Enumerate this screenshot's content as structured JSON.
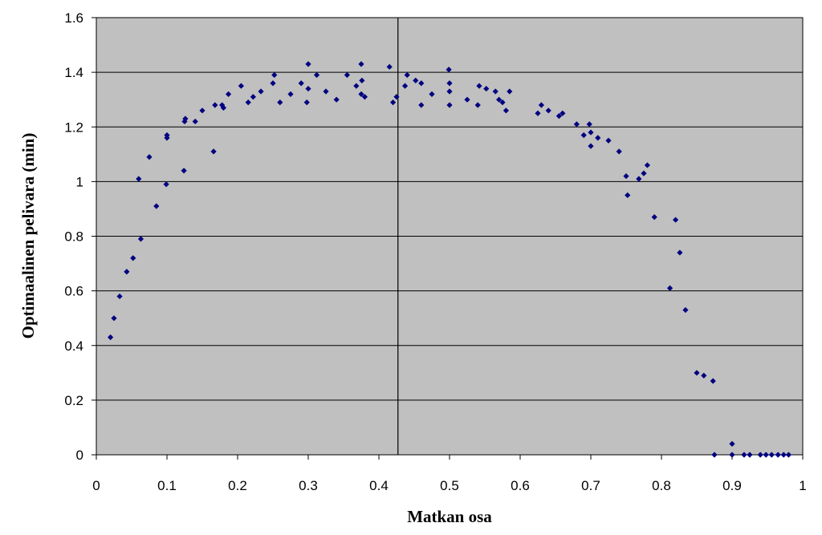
{
  "chart_data": {
    "type": "scatter",
    "title": "",
    "xlabel": "Matkan osa",
    "ylabel": "Optimaalinen pelivara (min)",
    "xlim": [
      0,
      1
    ],
    "ylim": [
      0,
      1.6
    ],
    "x_ticks": [
      "0",
      "0.1",
      "0.2",
      "0.3",
      "0.4",
      "0.5",
      "0.6",
      "0.7",
      "0.8",
      "0.9",
      "1"
    ],
    "y_ticks": [
      "0",
      "0.2",
      "0.4",
      "0.6",
      "0.8",
      "1",
      "1.2",
      "1.4",
      "1.6"
    ],
    "grid": "horizontal",
    "vertical_reference_line_x": 0.427,
    "plot_background": "#c0c0c0",
    "marker_color": "#000080",
    "series": [
      {
        "points": [
          [
            0.02,
            0.43
          ],
          [
            0.025,
            0.5
          ],
          [
            0.033,
            0.58
          ],
          [
            0.043,
            0.67
          ],
          [
            0.052,
            0.72
          ],
          [
            0.06,
            1.01
          ],
          [
            0.063,
            0.79
          ],
          [
            0.075,
            1.09
          ],
          [
            0.085,
            0.91
          ],
          [
            0.099,
            0.99
          ],
          [
            0.1,
            1.16
          ],
          [
            0.1,
            1.17
          ],
          [
            0.124,
            1.04
          ],
          [
            0.125,
            1.22
          ],
          [
            0.126,
            1.23
          ],
          [
            0.14,
            1.22
          ],
          [
            0.15,
            1.26
          ],
          [
            0.166,
            1.11
          ],
          [
            0.168,
            1.28
          ],
          [
            0.178,
            1.28
          ],
          [
            0.18,
            1.27
          ],
          [
            0.187,
            1.32
          ],
          [
            0.205,
            1.35
          ],
          [
            0.215,
            1.29
          ],
          [
            0.222,
            1.31
          ],
          [
            0.233,
            1.33
          ],
          [
            0.25,
            1.36
          ],
          [
            0.252,
            1.39
          ],
          [
            0.26,
            1.29
          ],
          [
            0.275,
            1.32
          ],
          [
            0.29,
            1.36
          ],
          [
            0.298,
            1.29
          ],
          [
            0.3,
            1.34
          ],
          [
            0.3,
            1.43
          ],
          [
            0.312,
            1.39
          ],
          [
            0.325,
            1.33
          ],
          [
            0.34,
            1.3
          ],
          [
            0.355,
            1.39
          ],
          [
            0.368,
            1.35
          ],
          [
            0.375,
            1.43
          ],
          [
            0.375,
            1.32
          ],
          [
            0.376,
            1.37
          ],
          [
            0.38,
            1.31
          ],
          [
            0.415,
            1.42
          ],
          [
            0.42,
            1.29
          ],
          [
            0.425,
            1.31
          ],
          [
            0.437,
            1.35
          ],
          [
            0.44,
            1.39
          ],
          [
            0.452,
            1.37
          ],
          [
            0.46,
            1.36
          ],
          [
            0.46,
            1.28
          ],
          [
            0.475,
            1.32
          ],
          [
            0.499,
            1.41
          ],
          [
            0.5,
            1.36
          ],
          [
            0.5,
            1.33
          ],
          [
            0.5,
            1.28
          ],
          [
            0.525,
            1.3
          ],
          [
            0.54,
            1.28
          ],
          [
            0.542,
            1.35
          ],
          [
            0.552,
            1.34
          ],
          [
            0.565,
            1.33
          ],
          [
            0.57,
            1.3
          ],
          [
            0.575,
            1.29
          ],
          [
            0.58,
            1.26
          ],
          [
            0.585,
            1.33
          ],
          [
            0.625,
            1.25
          ],
          [
            0.63,
            1.28
          ],
          [
            0.64,
            1.26
          ],
          [
            0.655,
            1.24
          ],
          [
            0.66,
            1.25
          ],
          [
            0.68,
            1.21
          ],
          [
            0.69,
            1.17
          ],
          [
            0.698,
            1.21
          ],
          [
            0.7,
            1.13
          ],
          [
            0.7,
            1.18
          ],
          [
            0.71,
            1.16
          ],
          [
            0.725,
            1.15
          ],
          [
            0.74,
            1.11
          ],
          [
            0.75,
            1.02
          ],
          [
            0.752,
            0.95
          ],
          [
            0.768,
            1.01
          ],
          [
            0.775,
            1.03
          ],
          [
            0.78,
            1.06
          ],
          [
            0.79,
            0.87
          ],
          [
            0.812,
            0.61
          ],
          [
            0.82,
            0.86
          ],
          [
            0.826,
            0.74
          ],
          [
            0.834,
            0.53
          ],
          [
            0.85,
            0.3
          ],
          [
            0.86,
            0.29
          ],
          [
            0.873,
            0.27
          ],
          [
            0.875,
            0.0
          ],
          [
            0.9,
            0.04
          ],
          [
            0.9,
            0.0
          ],
          [
            0.917,
            0.0
          ],
          [
            0.925,
            0.0
          ],
          [
            0.94,
            0.0
          ],
          [
            0.948,
            0.0
          ],
          [
            0.956,
            0.0
          ],
          [
            0.965,
            0.0
          ],
          [
            0.973,
            0.0
          ],
          [
            0.98,
            0.0
          ]
        ]
      }
    ]
  }
}
